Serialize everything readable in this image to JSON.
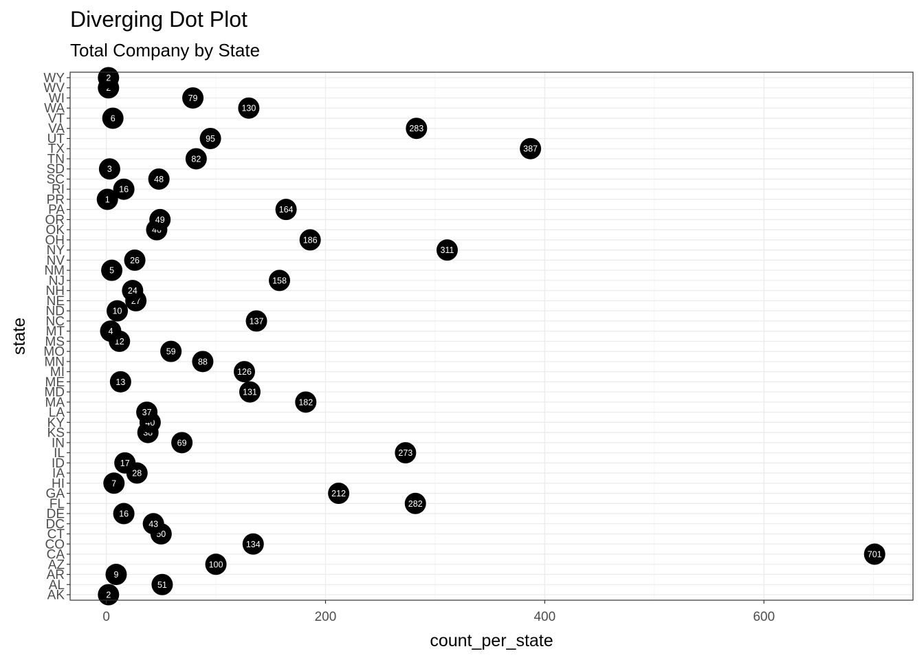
{
  "chart_data": {
    "type": "scatter",
    "title": "Diverging Dot Plot",
    "subtitle": "Total Company by State",
    "xlabel": "count_per_state",
    "ylabel": "state",
    "xlim": [
      -33,
      736
    ],
    "xticks": [
      0,
      200,
      400,
      600
    ],
    "grid": true,
    "legend": "none",
    "dot_color": "#000000",
    "label_color": "#ffffff",
    "grid_major_color": "#ebebeb",
    "grid_minor_color": "#f5f5f5",
    "border_color": "#333333",
    "states": [
      "AK",
      "AL",
      "AR",
      "AZ",
      "CA",
      "CO",
      "CT",
      "DC",
      "DE",
      "FL",
      "GA",
      "HI",
      "IA",
      "ID",
      "IL",
      "IN",
      "KS",
      "KY",
      "LA",
      "MA",
      "MD",
      "ME",
      "MI",
      "MN",
      "MO",
      "MS",
      "MT",
      "NC",
      "ND",
      "NE",
      "NH",
      "NJ",
      "NM",
      "NV",
      "NY",
      "OH",
      "OK",
      "OR",
      "PA",
      "PR",
      "RI",
      "SC",
      "SD",
      "TN",
      "TX",
      "UT",
      "VA",
      "VT",
      "WA",
      "WI",
      "WV",
      "WY"
    ],
    "values": [
      2,
      51,
      9,
      100,
      701,
      134,
      50,
      43,
      16,
      282,
      212,
      7,
      28,
      17,
      273,
      69,
      38,
      40,
      37,
      182,
      131,
      13,
      126,
      88,
      59,
      12,
      4,
      137,
      10,
      27,
      24,
      158,
      5,
      26,
      311,
      186,
      46,
      49,
      164,
      1,
      16,
      48,
      3,
      82,
      387,
      95,
      283,
      6,
      130,
      79,
      2,
      2
    ]
  }
}
